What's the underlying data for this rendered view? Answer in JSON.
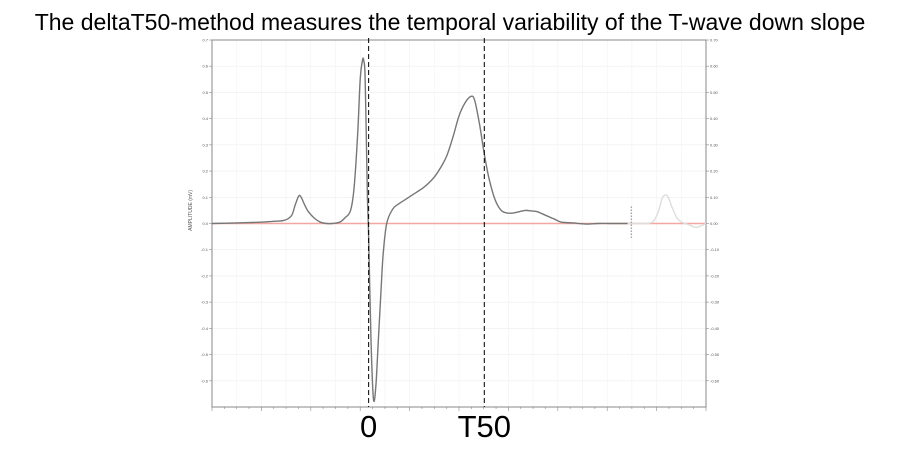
{
  "title": "The deltaT50-method measures the temporal variability of the T-wave down slope",
  "chart_data": {
    "type": "line",
    "title": "The deltaT50-method measures the temporal variability of the T-wave down slope",
    "xlabel": "",
    "ylabel": "AMPLITUDE (mV)",
    "ylim": [
      -0.7,
      0.7
    ],
    "xlim": [
      -130,
      280
    ],
    "grid": true,
    "left_ticks": [
      {
        "v": 0.7,
        "label": "0.7"
      },
      {
        "v": 0.6,
        "label": "0.6"
      },
      {
        "v": 0.5,
        "label": "0.5"
      },
      {
        "v": 0.4,
        "label": "0.4"
      },
      {
        "v": 0.3,
        "label": "0.3"
      },
      {
        "v": 0.2,
        "label": "0.2"
      },
      {
        "v": 0.1,
        "label": "0.1"
      },
      {
        "v": 0.0,
        "label": "0.0"
      },
      {
        "v": -0.1,
        "label": "-0.1"
      },
      {
        "v": -0.2,
        "label": "-0.2"
      },
      {
        "v": -0.3,
        "label": "-0.3"
      },
      {
        "v": -0.4,
        "label": "-0.4"
      },
      {
        "v": -0.5,
        "label": "-0.5"
      },
      {
        "v": -0.6,
        "label": "-0.6"
      }
    ],
    "right_ticks": [
      {
        "v": 0.7,
        "label": "0.70"
      },
      {
        "v": 0.6,
        "label": "0.60"
      },
      {
        "v": 0.5,
        "label": "0.50"
      },
      {
        "v": 0.4,
        "label": "0.40"
      },
      {
        "v": 0.3,
        "label": "0.30"
      },
      {
        "v": 0.2,
        "label": "0.20"
      },
      {
        "v": 0.1,
        "label": "0.10"
      },
      {
        "v": 0.0,
        "label": "0.00"
      },
      {
        "v": -0.1,
        "label": "-0.10"
      },
      {
        "v": -0.2,
        "label": "-0.20"
      },
      {
        "v": -0.3,
        "label": "-0.30"
      },
      {
        "v": -0.4,
        "label": "-0.40"
      },
      {
        "v": -0.5,
        "label": "-0.50"
      },
      {
        "v": -0.6,
        "label": "-0.60"
      }
    ],
    "markers": [
      {
        "label": "0",
        "x": 0
      },
      {
        "label": "T50",
        "x": 96
      }
    ],
    "baseline": {
      "y": 0.0,
      "color": "#f4a6a0"
    },
    "series": [
      {
        "color": "#777777",
        "x": [
          -130,
          -110,
          -90,
          -80,
          -70,
          -64,
          -61,
          -58,
          -56,
          -53,
          -50,
          -45,
          -40,
          -35,
          -30,
          -24,
          -20,
          -15,
          -12,
          -9,
          -7,
          -5,
          -4,
          -3,
          -2,
          -1,
          0,
          2,
          4,
          6,
          8,
          10,
          12,
          15,
          20,
          25,
          30,
          35,
          40,
          45,
          50,
          55,
          60,
          65,
          70,
          75,
          80,
          85,
          88,
          92,
          96,
          100,
          105,
          110,
          115,
          120,
          125,
          130,
          135,
          140,
          145,
          150,
          155,
          160,
          170,
          180,
          190,
          200,
          215
        ],
        "y": [
          0.0,
          0.002,
          0.005,
          0.008,
          0.012,
          0.03,
          0.07,
          0.105,
          0.1,
          0.07,
          0.045,
          0.02,
          0.005,
          0.0,
          0.0,
          0.005,
          0.02,
          0.05,
          0.14,
          0.35,
          0.55,
          0.625,
          0.62,
          0.57,
          0.35,
          0.1,
          -0.05,
          -0.45,
          -0.67,
          -0.62,
          -0.45,
          -0.28,
          -0.12,
          0.0,
          0.055,
          0.075,
          0.09,
          0.105,
          0.12,
          0.135,
          0.155,
          0.18,
          0.215,
          0.26,
          0.33,
          0.41,
          0.46,
          0.485,
          0.47,
          0.38,
          0.265,
          0.17,
          0.09,
          0.05,
          0.04,
          0.04,
          0.045,
          0.05,
          0.048,
          0.045,
          0.035,
          0.025,
          0.015,
          0.005,
          0.002,
          -0.002,
          0.0,
          0.0,
          0.0
        ]
      },
      {
        "color": "#dddddd",
        "x": [
          215,
          225,
          235,
          240,
          244,
          248,
          252,
          256,
          260,
          266,
          272,
          280
        ],
        "y": [
          0.0,
          0.0,
          0.004,
          0.04,
          0.1,
          0.105,
          0.06,
          0.02,
          0.005,
          -0.005,
          -0.015,
          0.0
        ]
      }
    ],
    "end_marker": {
      "x": 218,
      "ymin": -0.055,
      "ymax": 0.065,
      "color": "#999999"
    }
  }
}
